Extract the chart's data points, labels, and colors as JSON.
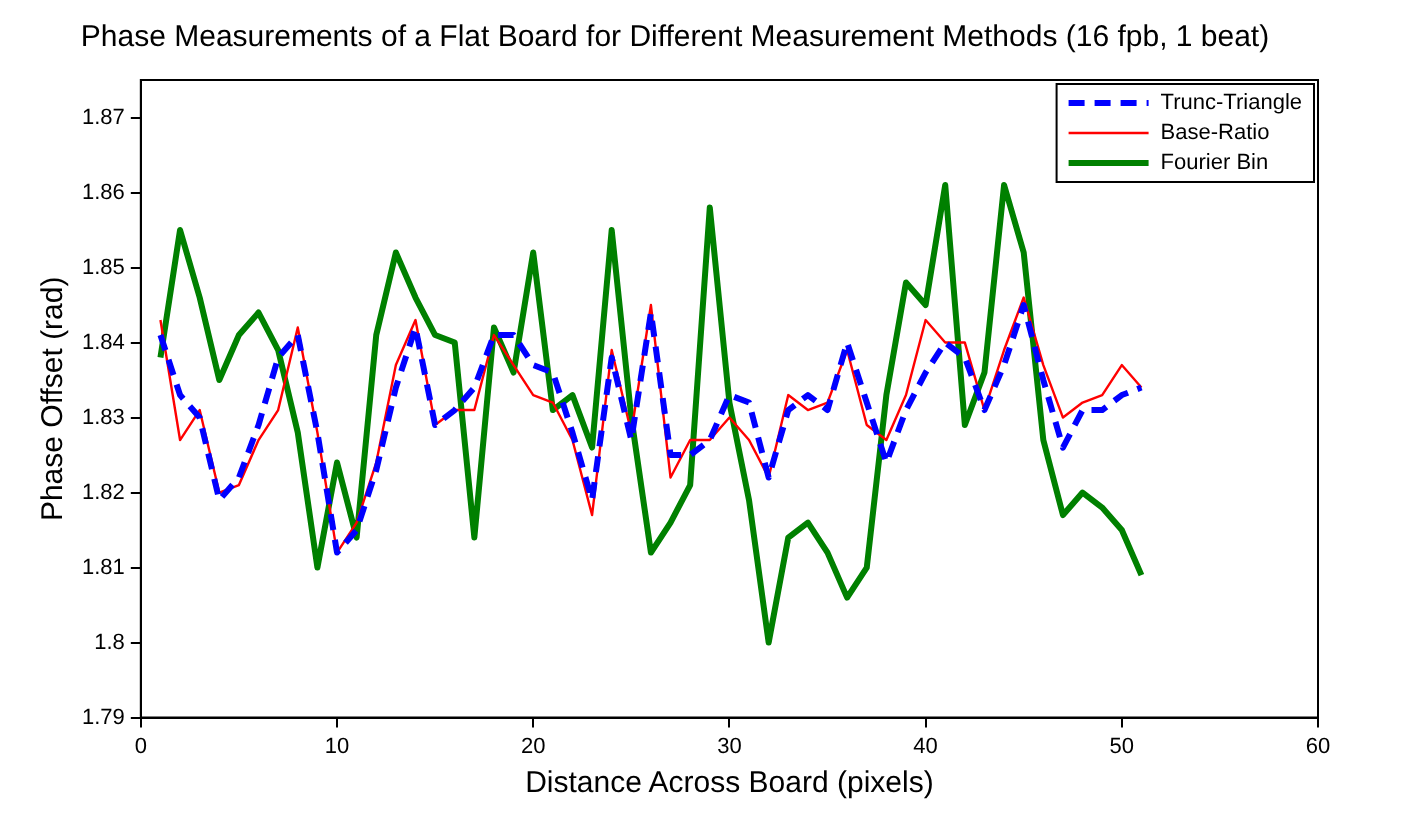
{
  "chart_data": {
    "type": "line",
    "title": "Phase Measurements of a Flat Board for Different Measurement Methods (16 fpb, 1 beat)",
    "xlabel": "Distance Across Board (pixels)",
    "ylabel": "Phase Offset (rad)",
    "x": [
      1,
      2,
      3,
      4,
      5,
      6,
      7,
      8,
      9,
      10,
      11,
      12,
      13,
      14,
      15,
      16,
      17,
      18,
      19,
      20,
      21,
      22,
      23,
      24,
      25,
      26,
      27,
      28,
      29,
      30,
      31,
      32,
      33,
      34,
      35,
      36,
      37,
      38,
      39,
      40,
      41,
      42,
      43,
      44,
      45,
      46,
      47,
      48,
      49,
      50,
      51
    ],
    "series": [
      {
        "name": "Trunc-Triangle",
        "color": "#0000ff",
        "line_style": "dashed",
        "values": [
          1.841,
          1.833,
          1.83,
          1.819,
          1.822,
          1.829,
          1.838,
          1.841,
          1.828,
          1.812,
          1.815,
          1.823,
          1.834,
          1.842,
          1.829,
          1.831,
          1.834,
          1.841,
          1.841,
          1.837,
          1.836,
          1.828,
          1.819,
          1.838,
          1.827,
          1.844,
          1.825,
          1.825,
          1.827,
          1.833,
          1.832,
          1.822,
          1.831,
          1.833,
          1.831,
          1.84,
          1.832,
          1.824,
          1.831,
          1.836,
          1.84,
          1.838,
          1.831,
          1.837,
          1.845,
          1.835,
          1.826,
          1.831,
          1.831,
          1.833,
          1.834
        ]
      },
      {
        "name": "Base-Ratio",
        "color": "#ff0000",
        "line_style": "solid",
        "values": [
          1.843,
          1.827,
          1.831,
          1.82,
          1.821,
          1.827,
          1.831,
          1.842,
          1.828,
          1.812,
          1.816,
          1.824,
          1.837,
          1.843,
          1.829,
          1.831,
          1.831,
          1.841,
          1.837,
          1.833,
          1.832,
          1.827,
          1.817,
          1.839,
          1.828,
          1.845,
          1.822,
          1.827,
          1.827,
          1.83,
          1.827,
          1.822,
          1.833,
          1.831,
          1.832,
          1.839,
          1.829,
          1.827,
          1.833,
          1.843,
          1.84,
          1.84,
          1.831,
          1.839,
          1.846,
          1.837,
          1.83,
          1.832,
          1.833,
          1.837,
          1.834
        ]
      },
      {
        "name": "Fourier Bin",
        "color": "#008000",
        "line_style": "solid",
        "values": [
          1.838,
          1.855,
          1.846,
          1.835,
          1.841,
          1.844,
          1.839,
          1.828,
          1.81,
          1.824,
          1.814,
          1.841,
          1.852,
          1.846,
          1.841,
          1.84,
          1.814,
          1.842,
          1.836,
          1.852,
          1.831,
          1.833,
          1.826,
          1.855,
          1.83,
          1.812,
          1.816,
          1.821,
          1.858,
          1.832,
          1.819,
          1.8,
          1.814,
          1.816,
          1.812,
          1.806,
          1.81,
          1.833,
          1.848,
          1.845,
          1.861,
          1.829,
          1.836,
          1.861,
          1.852,
          1.827,
          1.817,
          1.82,
          1.818,
          1.815,
          1.809
        ]
      }
    ],
    "xlim": [
      0,
      60
    ],
    "xticks": [
      0,
      10,
      20,
      30,
      40,
      50,
      60
    ],
    "ylim": [
      1.79,
      1.875
    ],
    "yticks": [
      1.79,
      1.8,
      1.81,
      1.82,
      1.83,
      1.84,
      1.85,
      1.86,
      1.87
    ],
    "grid": false,
    "legend": "top right",
    "marker": "none"
  }
}
